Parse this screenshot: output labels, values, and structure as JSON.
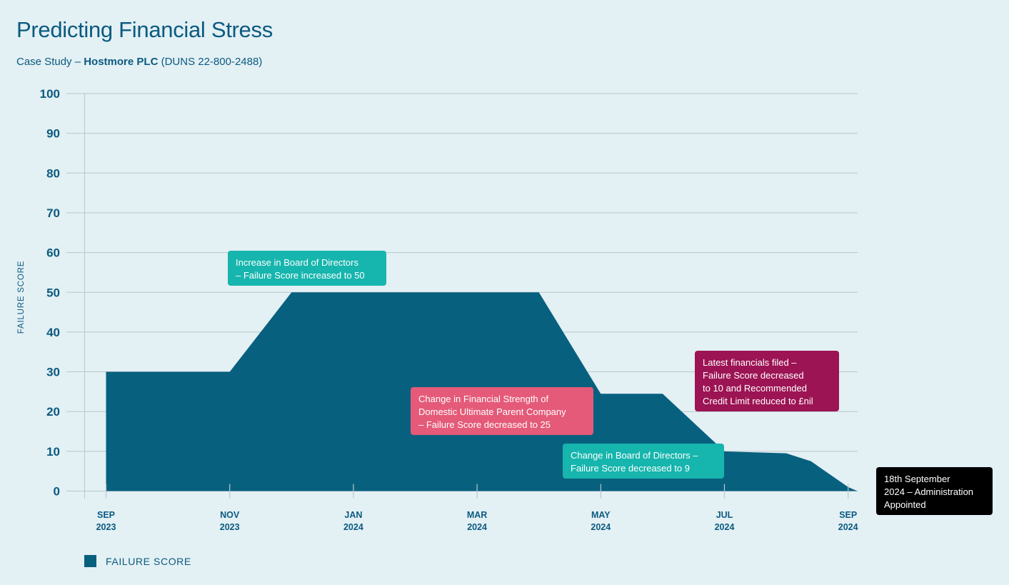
{
  "title": "Predicting Financial Stress",
  "subtitle": {
    "prefix": "Case Study – ",
    "company": "Hostmore PLC",
    "suffix": " (DUNS 22-800-2488)"
  },
  "colors": {
    "area": "#08607f",
    "grid": "#b9c7cc",
    "axis_text": "#0b5a80",
    "teal": "#16b5ad",
    "pink": "#e45a78",
    "maroon": "#9c1454",
    "black": "#000000"
  },
  "chart_data": {
    "type": "area",
    "ylabel": "FAILURE SCORE",
    "ylim": [
      0,
      100
    ],
    "yticks": [
      0,
      10,
      20,
      30,
      40,
      50,
      60,
      70,
      80,
      90,
      100
    ],
    "xticks": [
      {
        "month": 0,
        "line1": "SEP",
        "line2": "2023"
      },
      {
        "month": 2,
        "line1": "NOV",
        "line2": "2023"
      },
      {
        "month": 4,
        "line1": "JAN",
        "line2": "2024"
      },
      {
        "month": 6,
        "line1": "MAR",
        "line2": "2024"
      },
      {
        "month": 8,
        "line1": "MAY",
        "line2": "2024"
      },
      {
        "month": 10,
        "line1": "JUL",
        "line2": "2024"
      },
      {
        "month": 12,
        "line1": "SEP",
        "line2": "2024"
      }
    ],
    "x_note": "x values are months with 0 = Sep 2023",
    "series": [
      {
        "name": "FAILURE SCORE",
        "points": [
          [
            0,
            0
          ],
          [
            0,
            30
          ],
          [
            2,
            30
          ],
          [
            3,
            50
          ],
          [
            7,
            50
          ],
          [
            8,
            24.5
          ],
          [
            9,
            24.5
          ],
          [
            10,
            10
          ],
          [
            11,
            9.5
          ],
          [
            11.4,
            7.5
          ],
          [
            12,
            1
          ],
          [
            12.15,
            0
          ]
        ]
      }
    ],
    "annotations": [
      {
        "text": "Increase in Board of Directors\n– Failure Score increased to 50",
        "color": "teal"
      },
      {
        "text": "Change in Financial Strength of\nDomestic Ultimate Parent Company\n– Failure Score decreased to 25",
        "color": "pink"
      },
      {
        "text": "Change in Board of Directors –\nFailure Score decreased to 9",
        "color": "teal"
      },
      {
        "text": "Latest financials filed –\nFailure Score decreased\nto 10 and Recommended\nCredit Limit reduced to £nil",
        "color": "maroon"
      },
      {
        "text": "18th September\n2024 – Administration\nAppointed",
        "color": "black"
      }
    ],
    "legend": {
      "label": "FAILURE SCORE",
      "position": "bottom-left"
    }
  }
}
